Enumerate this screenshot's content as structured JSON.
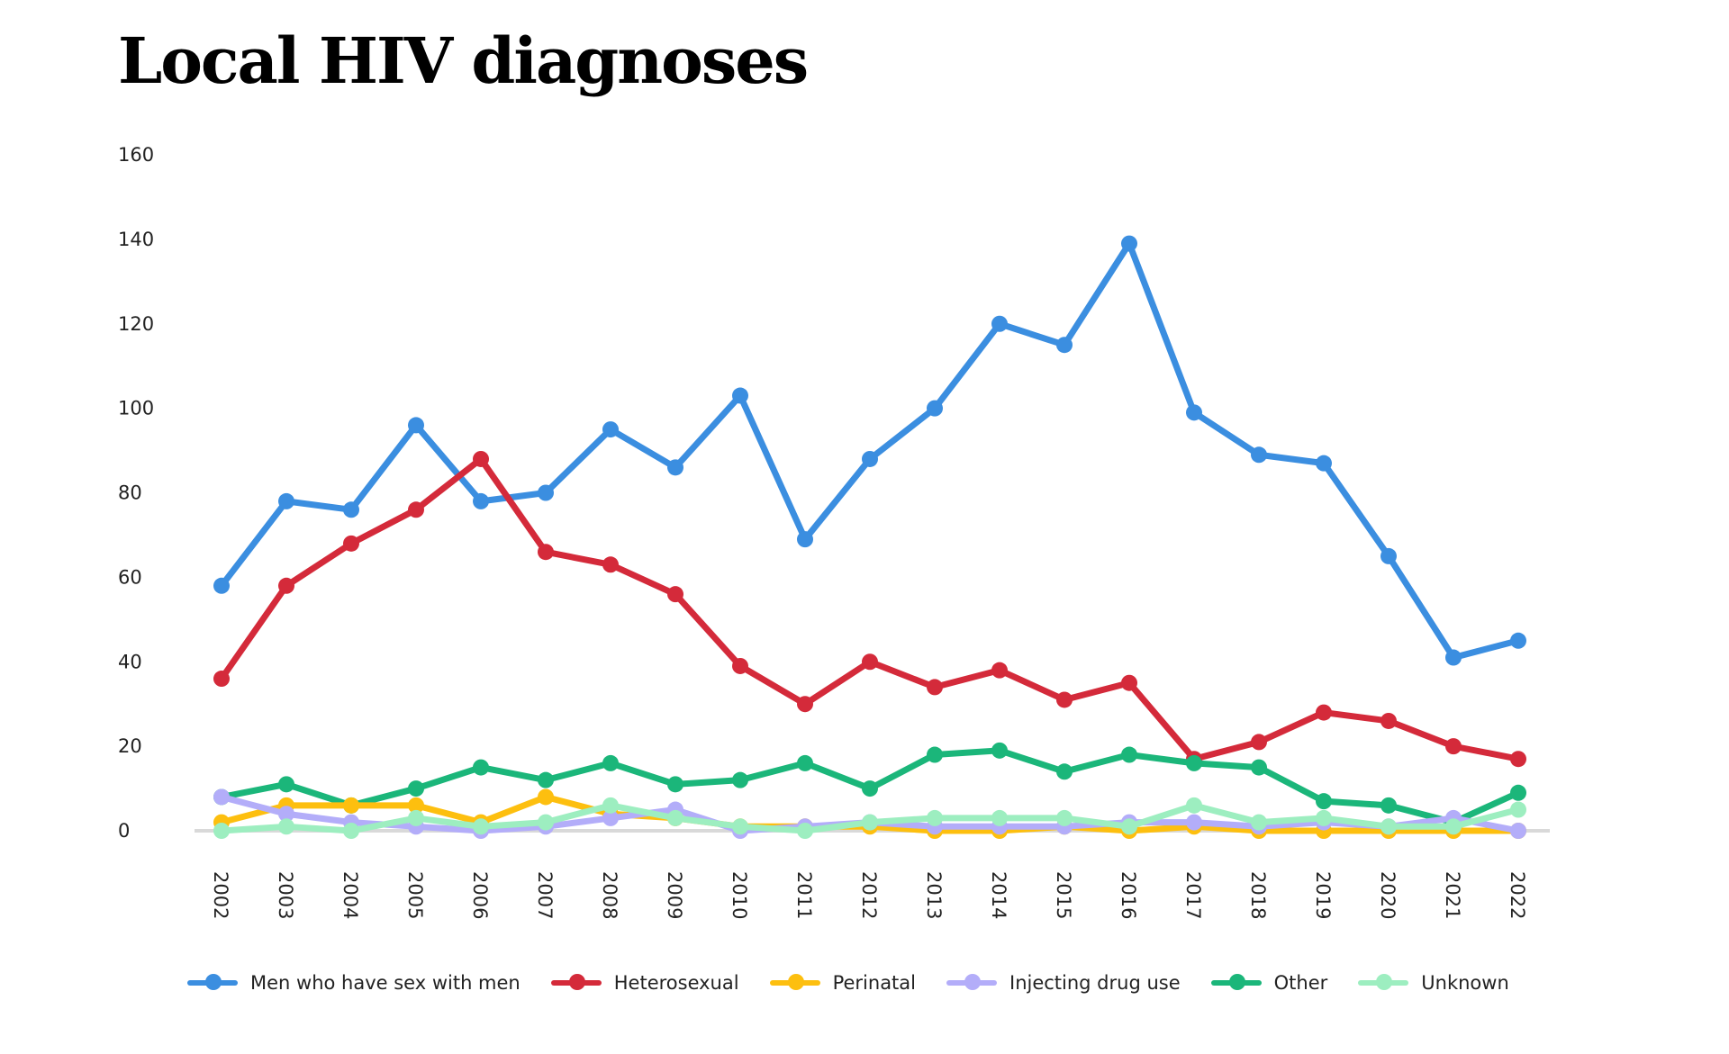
{
  "chart_data": {
    "type": "line",
    "title": "Local HIV diagnoses",
    "xlabel": "",
    "ylabel": "",
    "ylim": [
      0,
      160
    ],
    "yticks": [
      0,
      20,
      40,
      60,
      80,
      100,
      120,
      140,
      160
    ],
    "grid": false,
    "legend_position": "bottom",
    "categories": [
      "2002",
      "2003",
      "2004",
      "2005",
      "2006",
      "2007",
      "2008",
      "2009",
      "2010",
      "2011",
      "2012",
      "2013",
      "2014",
      "2015",
      "2016",
      "2017",
      "2018",
      "2019",
      "2020",
      "2021",
      "2022"
    ],
    "series": [
      {
        "name": "Men who have sex with men",
        "color": "#3b8ee0",
        "values": [
          58,
          78,
          76,
          96,
          78,
          80,
          95,
          86,
          103,
          69,
          88,
          100,
          120,
          115,
          139,
          99,
          89,
          87,
          65,
          41,
          45
        ]
      },
      {
        "name": "Heterosexual",
        "color": "#d42a3a",
        "values": [
          36,
          58,
          68,
          76,
          88,
          66,
          63,
          56,
          39,
          30,
          40,
          34,
          38,
          31,
          35,
          17,
          21,
          28,
          26,
          20,
          17
        ]
      },
      {
        "name": "Perinatal",
        "color": "#fdbf0f",
        "values": [
          2,
          6,
          6,
          6,
          2,
          8,
          4,
          3,
          1,
          1,
          1,
          0,
          0,
          1,
          0,
          1,
          0,
          0,
          0,
          0,
          0
        ]
      },
      {
        "name": "Injecting drug use",
        "color": "#b3adf9",
        "values": [
          8,
          4,
          2,
          1,
          0,
          1,
          3,
          5,
          0,
          1,
          2,
          1,
          1,
          1,
          2,
          2,
          1,
          2,
          1,
          3,
          0
        ]
      },
      {
        "name": "Other",
        "color": "#1bb67a",
        "values": [
          8,
          11,
          6,
          10,
          15,
          12,
          16,
          11,
          12,
          16,
          10,
          18,
          19,
          14,
          18,
          16,
          15,
          7,
          6,
          2,
          9
        ]
      },
      {
        "name": "Unknown",
        "color": "#9deec0",
        "values": [
          0,
          1,
          0,
          3,
          1,
          2,
          6,
          3,
          1,
          0,
          2,
          3,
          3,
          3,
          1,
          6,
          2,
          3,
          1,
          1,
          5
        ]
      }
    ]
  }
}
